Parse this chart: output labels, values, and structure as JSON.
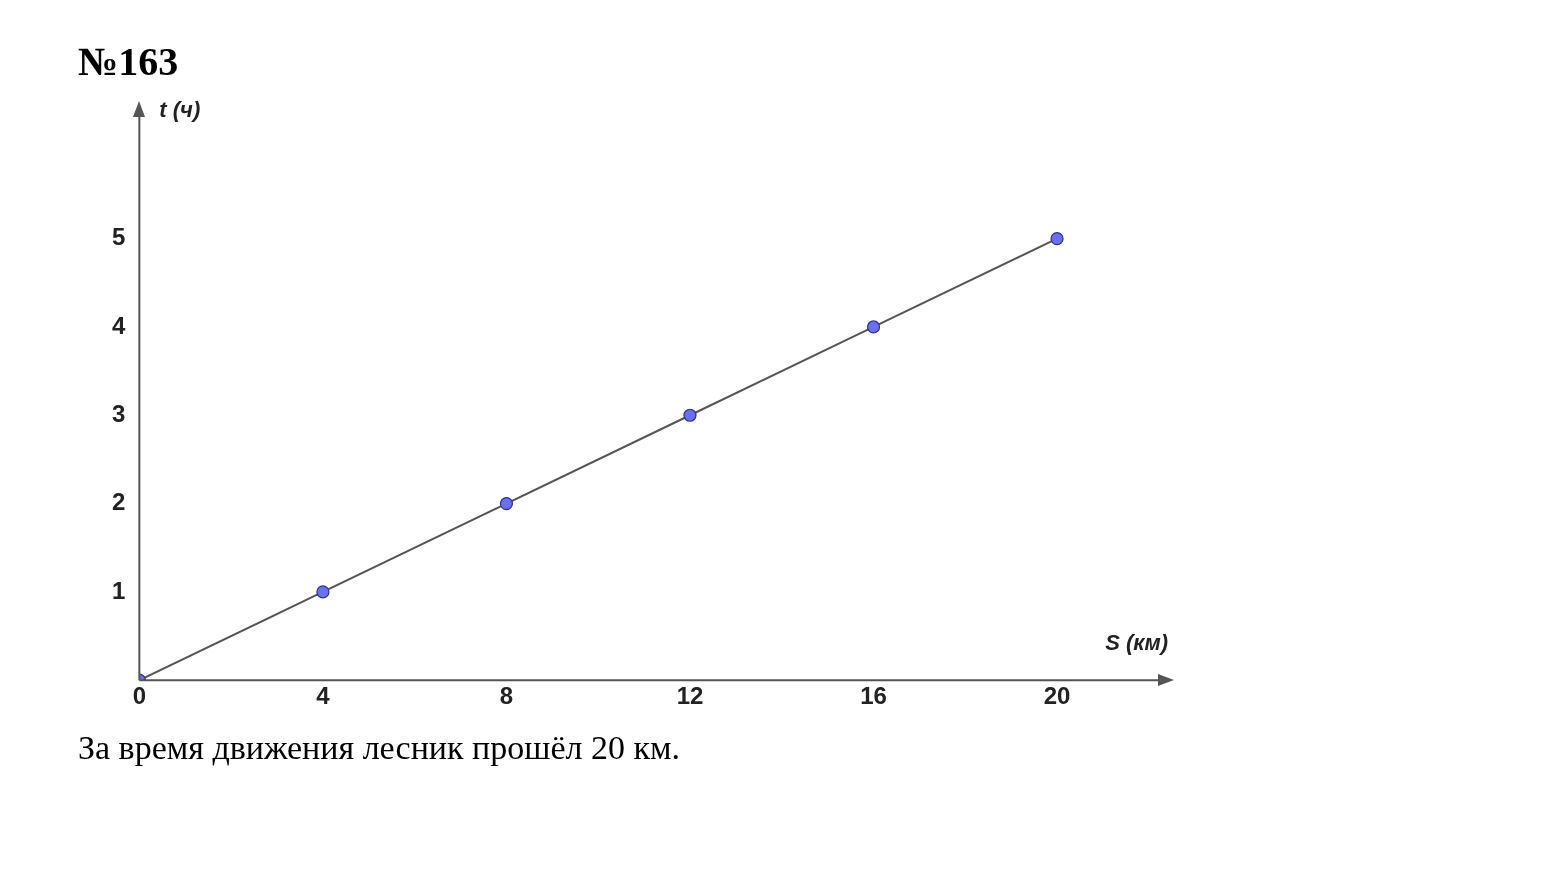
{
  "chart_data": {
    "type": "line",
    "title": "№163",
    "xlabel": "S (км)",
    "ylabel": "t (ч)",
    "x": [
      0,
      4,
      8,
      12,
      16,
      20
    ],
    "series": [
      {
        "color": "#555555",
        "values": [
          0,
          1,
          2,
          3,
          4,
          5
        ]
      }
    ],
    "xlim": [
      0,
      22.2
    ],
    "ylim": [
      0,
      6.4
    ],
    "xticks": [
      0,
      4,
      8,
      12,
      16,
      20
    ],
    "yticks": [
      1,
      2,
      3,
      4,
      5
    ],
    "grid": false,
    "legend": false,
    "marker": "circle",
    "line_style": "solid",
    "annotations": [
      "За время движения лесник прошёл 20 км."
    ]
  }
}
